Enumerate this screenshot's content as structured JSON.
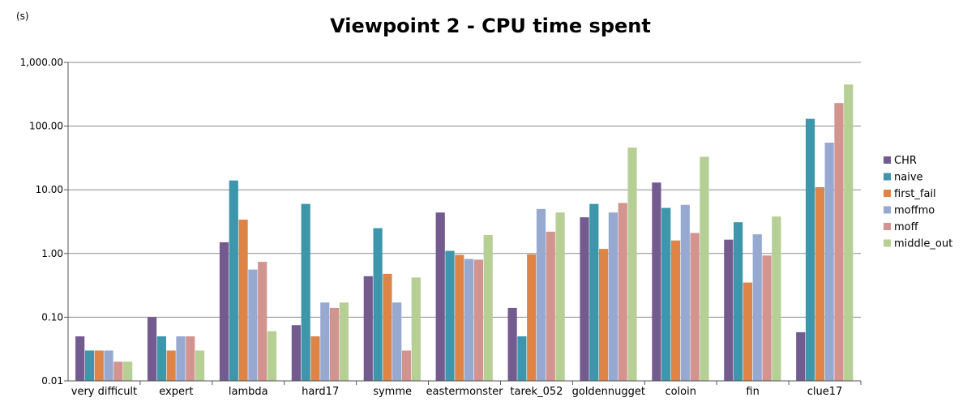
{
  "chart_data": {
    "type": "bar",
    "title": "Viewpoint 2 - CPU time spent",
    "unit_label": "(s)",
    "yscale": "log",
    "ylim": [
      0.01,
      1000
    ],
    "yticks": [
      1000,
      100,
      10,
      1,
      0.1,
      0.01
    ],
    "ytick_labels": [
      "1,000.00",
      "100.00",
      "10.00",
      "1.00",
      "0.10",
      "0.01"
    ],
    "grid": true,
    "legend_position": "right",
    "categories": [
      "very difficult",
      "expert",
      "lambda",
      "hard17",
      "symme",
      "eastermonster",
      "tarek_052",
      "goldennugget",
      "coloin",
      "fin",
      "clue17"
    ],
    "series": [
      {
        "name": "CHR",
        "color": "#735a8f",
        "values": [
          0.05,
          0.1,
          1.5,
          0.075,
          0.44,
          4.4,
          0.14,
          3.7,
          13,
          1.65,
          0.058
        ]
      },
      {
        "name": "naive",
        "color": "#3d96ab",
        "values": [
          0.03,
          0.05,
          14,
          6,
          2.5,
          1.1,
          0.05,
          6,
          5.2,
          3.1,
          130
        ]
      },
      {
        "name": "first_fail",
        "color": "#dd8446",
        "values": [
          0.03,
          0.03,
          3.4,
          0.05,
          0.48,
          0.95,
          0.97,
          1.18,
          1.6,
          0.35,
          11
        ]
      },
      {
        "name": "moffmo",
        "color": "#97a9d1",
        "values": [
          0.03,
          0.05,
          0.56,
          0.17,
          0.17,
          0.82,
          5,
          4.4,
          5.8,
          2,
          55
        ]
      },
      {
        "name": "moff",
        "color": "#d3938f",
        "values": [
          0.02,
          0.05,
          0.74,
          0.14,
          0.03,
          0.8,
          2.2,
          6.2,
          2.1,
          0.93,
          230
        ]
      },
      {
        "name": "middle_out",
        "color": "#b5cf94",
        "values": [
          0.02,
          0.03,
          0.06,
          0.17,
          0.42,
          1.95,
          4.4,
          46,
          33,
          3.8,
          450
        ]
      }
    ]
  }
}
